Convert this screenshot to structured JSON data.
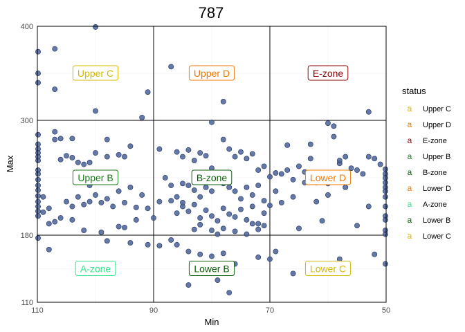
{
  "chart_data": {
    "type": "scatter",
    "title": "787",
    "xlabel": "Min",
    "ylabel": "Max",
    "x_reversed": true,
    "xlim": [
      110,
      50
    ],
    "ylim": [
      110,
      400
    ],
    "x_ticks": [
      110,
      90,
      70,
      50
    ],
    "y_ticks": [
      110,
      180,
      300,
      400
    ],
    "vlines": [
      90,
      70
    ],
    "hlines": [
      300,
      180
    ],
    "grid": true,
    "point_color": "#4a6096",
    "legend": {
      "title": "status",
      "position": "right",
      "key_glyph": "a",
      "entries": [
        {
          "label": "Upper C",
          "color": "#d4b800"
        },
        {
          "label": "Upper D",
          "color": "#f07800"
        },
        {
          "label": "E-zone",
          "color": "#8b0000"
        },
        {
          "label": "Upper B",
          "color": "#1a7a1a"
        },
        {
          "label": "B-zone",
          "color": "#0a5c0a"
        },
        {
          "label": "Lower D",
          "color": "#f07800"
        },
        {
          "label": "A-zone",
          "color": "#2ee88a"
        },
        {
          "label": "Lower B",
          "color": "#0a5c0a"
        },
        {
          "label": "Lower C",
          "color": "#d4b800"
        }
      ]
    },
    "zone_labels": [
      {
        "label": "Upper C",
        "x": 100,
        "y": 350,
        "color": "#d4b800"
      },
      {
        "label": "Upper D",
        "x": 80,
        "y": 350,
        "color": "#f07800"
      },
      {
        "label": "E-zone",
        "x": 60,
        "y": 350,
        "color": "#8b0000"
      },
      {
        "label": "Upper B",
        "x": 100,
        "y": 240,
        "color": "#1a7a1a"
      },
      {
        "label": "B-zone",
        "x": 80,
        "y": 240,
        "color": "#0a5c0a"
      },
      {
        "label": "Lower D",
        "x": 60,
        "y": 240,
        "color": "#f07800"
      },
      {
        "label": "A-zone",
        "x": 100,
        "y": 145,
        "color": "#2ee88a"
      },
      {
        "label": "Lower B",
        "x": 80,
        "y": 145,
        "color": "#0a5c0a"
      },
      {
        "label": "Lower C",
        "x": 60,
        "y": 145,
        "color": "#d4b800"
      }
    ],
    "points": [
      [
        100,
        400
      ],
      [
        110,
        373
      ],
      [
        107,
        376
      ],
      [
        110,
        350
      ],
      [
        107,
        333
      ],
      [
        110,
        340
      ],
      [
        91,
        330
      ],
      [
        87,
        357
      ],
      [
        78,
        320
      ],
      [
        100,
        310
      ],
      [
        92,
        303
      ],
      [
        80,
        298
      ],
      [
        53,
        309
      ],
      [
        59,
        294
      ],
      [
        60,
        297
      ],
      [
        107,
        288
      ],
      [
        110,
        285
      ],
      [
        107,
        280
      ],
      [
        106,
        281
      ],
      [
        110,
        275
      ],
      [
        104,
        281
      ],
      [
        98,
        280
      ],
      [
        110,
        270
      ],
      [
        110,
        266
      ],
      [
        110,
        258
      ],
      [
        94,
        273
      ],
      [
        110,
        262
      ],
      [
        105,
        263
      ],
      [
        104,
        261
      ],
      [
        103,
        256
      ],
      [
        106,
        259
      ],
      [
        102,
        254
      ],
      [
        101,
        256
      ],
      [
        100,
        266
      ],
      [
        98,
        262
      ],
      [
        96,
        264
      ],
      [
        95,
        262
      ],
      [
        110,
        248
      ],
      [
        110,
        244
      ],
      [
        110,
        238
      ],
      [
        110,
        232
      ],
      [
        110,
        227
      ],
      [
        110,
        221
      ],
      [
        109,
        220
      ],
      [
        110,
        215
      ],
      [
        110,
        210
      ],
      [
        110,
        205
      ],
      [
        110,
        200
      ],
      [
        108,
        208
      ],
      [
        109,
        204
      ],
      [
        105,
        215
      ],
      [
        104,
        210
      ],
      [
        103,
        220
      ],
      [
        102,
        212
      ],
      [
        101,
        215
      ],
      [
        100,
        222
      ],
      [
        99,
        214
      ],
      [
        98,
        218
      ],
      [
        97,
        210
      ],
      [
        96,
        226
      ],
      [
        95,
        214
      ],
      [
        94,
        230
      ],
      [
        103,
        240
      ],
      [
        101,
        232
      ],
      [
        99,
        236
      ],
      [
        97,
        238
      ],
      [
        92,
        222
      ],
      [
        93,
        209
      ],
      [
        91,
        208
      ],
      [
        108,
        192
      ],
      [
        107,
        194
      ],
      [
        106,
        198
      ],
      [
        104,
        196
      ],
      [
        102,
        185
      ],
      [
        96,
        189
      ],
      [
        95,
        188
      ],
      [
        93,
        196
      ],
      [
        90,
        198
      ],
      [
        99,
        183
      ],
      [
        89,
        270
      ],
      [
        86,
        267
      ],
      [
        85,
        262
      ],
      [
        84,
        269
      ],
      [
        83,
        258
      ],
      [
        82,
        266
      ],
      [
        81,
        263
      ],
      [
        80,
        250
      ],
      [
        79,
        245
      ],
      [
        78,
        280
      ],
      [
        77,
        270
      ],
      [
        76,
        262
      ],
      [
        75,
        267
      ],
      [
        74,
        260
      ],
      [
        73,
        265
      ],
      [
        72,
        248
      ],
      [
        71,
        252
      ],
      [
        88,
        240
      ],
      [
        87,
        232
      ],
      [
        86,
        220
      ],
      [
        85,
        234
      ],
      [
        84,
        232
      ],
      [
        83,
        227
      ],
      [
        82,
        220
      ],
      [
        81,
        230
      ],
      [
        80,
        226
      ],
      [
        79,
        240
      ],
      [
        78,
        234
      ],
      [
        77,
        230
      ],
      [
        76,
        226
      ],
      [
        75,
        218
      ],
      [
        74,
        230
      ],
      [
        73,
        222
      ],
      [
        72,
        232
      ],
      [
        71,
        216
      ],
      [
        89,
        215
      ],
      [
        87,
        216
      ],
      [
        86,
        203
      ],
      [
        85,
        210
      ],
      [
        84,
        205
      ],
      [
        83,
        212
      ],
      [
        82,
        198
      ],
      [
        81,
        206
      ],
      [
        80,
        200
      ],
      [
        79,
        195
      ],
      [
        78,
        208
      ],
      [
        77,
        202
      ],
      [
        76,
        199
      ],
      [
        75,
        207
      ],
      [
        74,
        196
      ],
      [
        73,
        210
      ],
      [
        72,
        192
      ],
      [
        71,
        203
      ],
      [
        83,
        186
      ],
      [
        82,
        191
      ],
      [
        80,
        185
      ],
      [
        79,
        181
      ],
      [
        78,
        187
      ],
      [
        76,
        184
      ],
      [
        74,
        181
      ],
      [
        72,
        186
      ],
      [
        71,
        190
      ],
      [
        85,
        214
      ],
      [
        81,
        240
      ],
      [
        70,
        241
      ],
      [
        73,
        192
      ],
      [
        69,
        245
      ],
      [
        68,
        244
      ],
      [
        67,
        248
      ],
      [
        66,
        238
      ],
      [
        65,
        252
      ],
      [
        64,
        246
      ],
      [
        63,
        260
      ],
      [
        62,
        235
      ],
      [
        61,
        237
      ],
      [
        60,
        234
      ],
      [
        59,
        244
      ],
      [
        58,
        255
      ],
      [
        57,
        262
      ],
      [
        56,
        250
      ],
      [
        55,
        248
      ],
      [
        54,
        244
      ],
      [
        53,
        262
      ],
      [
        52,
        260
      ],
      [
        51,
        254
      ],
      [
        50,
        249
      ],
      [
        50,
        244
      ],
      [
        50,
        240
      ],
      [
        50,
        235
      ],
      [
        50,
        230
      ],
      [
        50,
        226
      ],
      [
        50,
        220
      ],
      [
        50,
        210
      ],
      [
        50,
        200
      ],
      [
        50,
        196
      ],
      [
        50,
        185
      ],
      [
        50,
        181
      ],
      [
        67,
        274
      ],
      [
        63,
        275
      ],
      [
        59,
        283
      ],
      [
        58,
        258
      ],
      [
        68,
        214
      ],
      [
        66,
        220
      ],
      [
        64,
        235
      ],
      [
        62,
        215
      ],
      [
        60,
        222
      ],
      [
        57,
        230
      ],
      [
        55,
        190
      ],
      [
        53,
        210
      ],
      [
        65,
        187
      ],
      [
        61,
        195
      ],
      [
        69,
        226
      ],
      [
        70,
        211
      ],
      [
        110,
        177
      ],
      [
        108,
        165
      ],
      [
        98,
        174
      ],
      [
        94,
        172
      ],
      [
        91,
        170
      ],
      [
        87,
        175
      ],
      [
        86,
        170
      ],
      [
        84,
        163
      ],
      [
        82,
        160
      ],
      [
        80,
        158
      ],
      [
        78,
        161
      ],
      [
        76,
        150
      ],
      [
        72,
        157
      ],
      [
        70,
        155
      ],
      [
        69,
        163
      ],
      [
        66,
        140
      ],
      [
        63,
        142
      ],
      [
        61,
        145
      ],
      [
        58,
        155
      ],
      [
        52,
        160
      ],
      [
        50,
        150
      ],
      [
        84,
        128
      ],
      [
        79,
        133
      ],
      [
        77,
        120
      ],
      [
        89,
        169
      ]
    ]
  }
}
